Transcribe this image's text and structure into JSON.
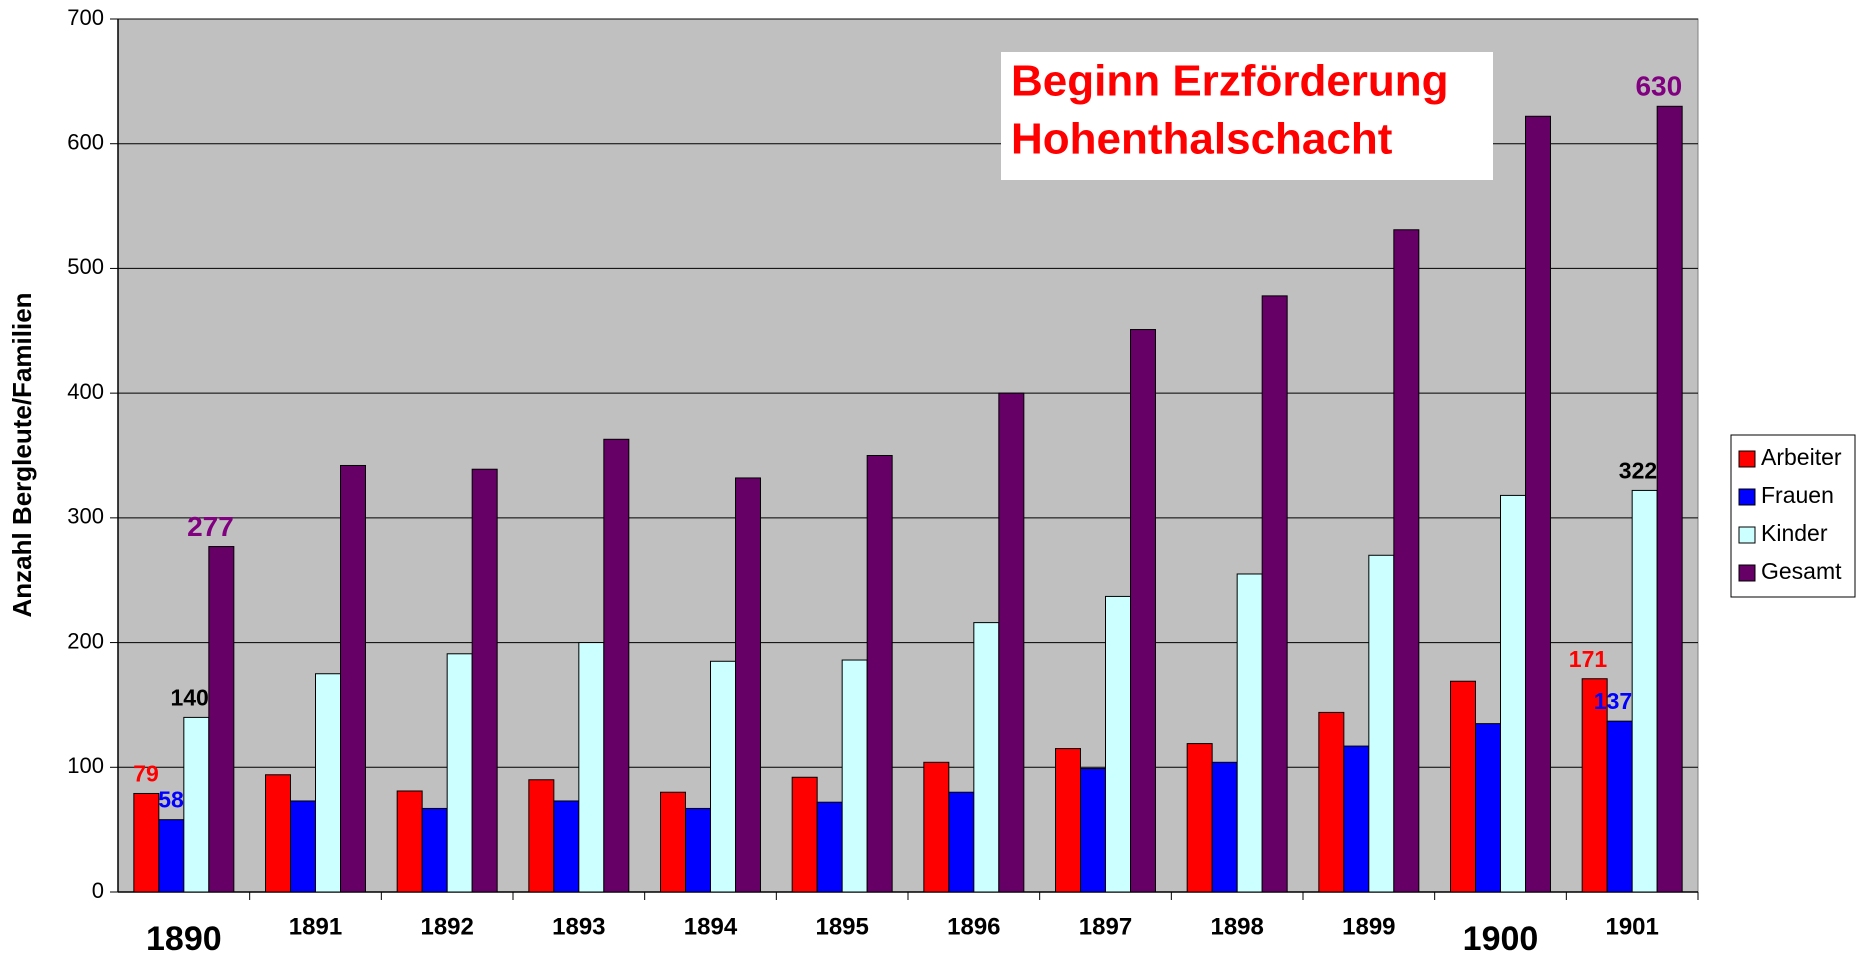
{
  "chart_data": {
    "type": "bar",
    "y_label": "Anzahl Bergleute/Familien",
    "annotation": [
      "Beginn Erzförderung",
      "Hohenthalschacht"
    ],
    "categories": [
      "1890",
      "1891",
      "1892",
      "1893",
      "1894",
      "1895",
      "1896",
      "1897",
      "1898",
      "1899",
      "1900",
      "1901"
    ],
    "series": [
      {
        "name": "Arbeiter",
        "color": "#ff0000",
        "label_color": "#ff0000",
        "values": [
          79,
          94,
          81,
          90,
          80,
          92,
          104,
          115,
          119,
          144,
          169,
          171
        ],
        "value_labels": [
          "79",
          null,
          null,
          null,
          null,
          null,
          null,
          null,
          null,
          null,
          null,
          "171"
        ]
      },
      {
        "name": "Frauen",
        "color": "#0000ff",
        "label_color": "#0000ff",
        "values": [
          58,
          73,
          67,
          73,
          67,
          72,
          80,
          99,
          104,
          117,
          135,
          137
        ],
        "value_labels": [
          "58",
          null,
          null,
          null,
          null,
          null,
          null,
          null,
          null,
          null,
          null,
          "137"
        ]
      },
      {
        "name": "Kinder",
        "color": "#ccffff",
        "label_color": "#000000",
        "values": [
          140,
          175,
          191,
          200,
          185,
          186,
          216,
          237,
          255,
          270,
          318,
          322
        ],
        "value_labels": [
          "140",
          null,
          null,
          null,
          null,
          null,
          null,
          null,
          null,
          null,
          null,
          "322"
        ]
      },
      {
        "name": "Gesamt",
        "color": "#660066",
        "label_color": "#800080",
        "values": [
          277,
          342,
          339,
          363,
          332,
          350,
          400,
          451,
          478,
          531,
          622,
          630
        ],
        "value_labels": [
          "277",
          null,
          null,
          null,
          null,
          null,
          null,
          null,
          null,
          null,
          null,
          "630"
        ]
      }
    ],
    "ylim": [
      0,
      700
    ],
    "yticks": [
      0,
      100,
      200,
      300,
      400,
      500,
      600,
      700
    ],
    "grid": true,
    "legend": "right"
  }
}
